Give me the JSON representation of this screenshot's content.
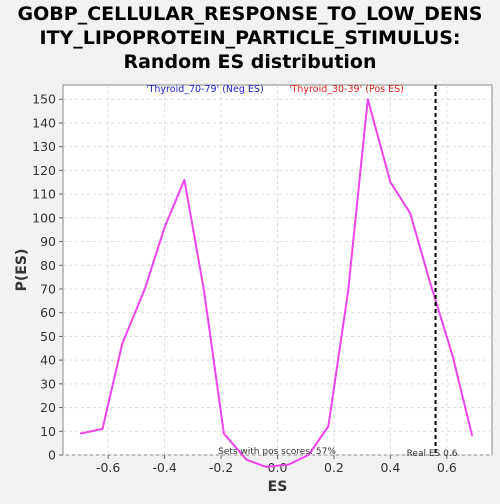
{
  "chart_data": {
    "type": "line",
    "title_lines": [
      "GOBP_CELLULAR_RESPONSE_TO_LOW_DENS",
      "ITY_LIPOPROTEIN_PARTICLE_STIMULUS:",
      "Random ES distribution"
    ],
    "xlabel": "ES",
    "ylabel": "P(ES)",
    "xlim": [
      -0.76,
      0.76
    ],
    "ylim": [
      0,
      156
    ],
    "xticks": [
      -0.6,
      -0.4,
      -0.2,
      0.0,
      0.2,
      0.4,
      0.6
    ],
    "xtick_labels": [
      "-0.6",
      "-0.4",
      "-0.2",
      "0.0",
      "0.2",
      "0.4",
      "0.6"
    ],
    "yticks": [
      0,
      10,
      20,
      30,
      40,
      50,
      60,
      70,
      80,
      90,
      100,
      110,
      120,
      130,
      140,
      150
    ],
    "grid": true,
    "series": [
      {
        "color": "#ee44ee",
        "x": [
          -0.7,
          -0.62,
          -0.55,
          -0.47,
          -0.4,
          -0.33,
          -0.26,
          -0.19,
          -0.11,
          -0.04,
          0.04,
          0.11,
          0.18,
          0.25,
          0.32,
          0.4,
          0.47,
          0.54,
          0.62,
          0.69
        ],
        "y": [
          9,
          11,
          47,
          70,
          96,
          116,
          69,
          9,
          -2,
          -5,
          -4,
          0,
          12,
          69,
          150,
          115,
          102,
          73,
          42,
          8
        ]
      }
    ],
    "legend": [
      {
        "label": "'Thyroid_70-79' (Neg ES)",
        "color": "#2222cc"
      },
      {
        "label": "'Thyroid_30-39' (Pos ES)",
        "color": "#dd2222"
      }
    ],
    "real_es": {
      "x": 0.56,
      "label": "Real ES 0.6"
    },
    "annotation": "Sets with pos scores: 57%",
    "colors": {
      "background": "#f2f2f2",
      "plot_background": "#ffffff",
      "grid": "#dddddd",
      "line": "#ee44ee"
    }
  }
}
